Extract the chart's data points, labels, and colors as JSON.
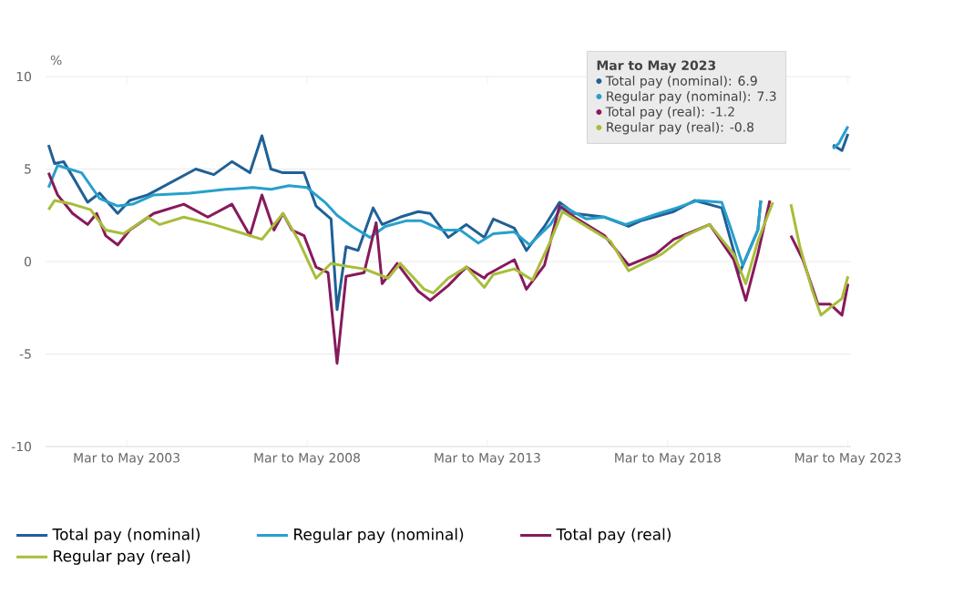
{
  "chart_data": {
    "type": "line",
    "ylabel": "%",
    "xlim": [
      "2001-01",
      "2023-05"
    ],
    "ylim": [
      -10,
      10
    ],
    "yticks": [
      -10,
      -5,
      0,
      5,
      10
    ],
    "xticks": [
      {
        "value": "2003-04",
        "label": "Mar to May 2003"
      },
      {
        "value": "2008-04",
        "label": "Mar to May 2008"
      },
      {
        "value": "2013-04",
        "label": "Mar to May 2013"
      },
      {
        "value": "2018-04",
        "label": "Mar to May 2018"
      },
      {
        "value": "2023-04",
        "label": "Mar to May 2023"
      }
    ],
    "grid": "y",
    "legend": "bottom",
    "marker": "none",
    "line_style": "solid",
    "annotations": [
      "Mar to May 2023",
      "Total pay (nominal): 6.9",
      "Regular pay (nominal): 7.3",
      "Total pay (real): -1.2",
      "Regular pay (real): -0.8"
    ],
    "series": [
      {
        "name": "Total pay (nominal)",
        "color": "#206095",
        "x": [
          "2001-02",
          "2001-04",
          "2001-07",
          "2001-10",
          "2002-03",
          "2002-07",
          "2003-01",
          "2003-05",
          "2003-11",
          "2004-07",
          "2005-03",
          "2005-09",
          "2006-03",
          "2006-09",
          "2007-01",
          "2007-04",
          "2007-08",
          "2008-03",
          "2008-07",
          "2008-12",
          "2009-02",
          "2009-05",
          "2009-09",
          "2010-02",
          "2010-05",
          "2010-11",
          "2011-05",
          "2011-09",
          "2012-03",
          "2012-09",
          "2013-03",
          "2013-06",
          "2014-01",
          "2014-05",
          "2014-11",
          "2015-04",
          "2015-09",
          "2016-07",
          "2017-03",
          "2017-07",
          "2018-06",
          "2019-01",
          "2019-10",
          "2020-04",
          "2020-10",
          "2020-11",
          "2021-06",
          "2022-11",
          "2023-02",
          "2023-04"
        ],
        "values": [
          6.3,
          5.3,
          5.4,
          4.6,
          3.2,
          3.7,
          2.6,
          3.3,
          3.6,
          4.3,
          5.0,
          4.7,
          5.4,
          4.8,
          6.8,
          5.0,
          4.8,
          4.8,
          3.0,
          2.3,
          -2.6,
          0.8,
          0.6,
          2.9,
          2.0,
          2.4,
          2.7,
          2.6,
          1.3,
          2.0,
          1.3,
          2.3,
          1.8,
          0.6,
          1.9,
          3.2,
          2.6,
          2.4,
          1.9,
          2.2,
          2.7,
          3.3,
          2.9,
          -0.6,
          1.7,
          3.3,
          null,
          6.3,
          6.0,
          6.9
        ]
      },
      {
        "name": "Regular pay (nominal)",
        "color": "#27a0cc",
        "x": [
          "2001-02",
          "2001-05",
          "2002-01",
          "2002-07",
          "2003-01",
          "2003-06",
          "2004-01",
          "2005-01",
          "2006-01",
          "2006-10",
          "2007-04",
          "2007-10",
          "2008-04",
          "2008-10",
          "2009-02",
          "2009-07",
          "2010-01",
          "2010-06",
          "2011-01",
          "2011-06",
          "2012-01",
          "2012-07",
          "2013-01",
          "2013-06",
          "2014-01",
          "2014-06",
          "2015-01",
          "2015-05",
          "2016-01",
          "2016-07",
          "2017-02",
          "2018-01",
          "2018-07",
          "2019-02",
          "2019-10",
          "2020-01",
          "2020-05",
          "2020-10",
          "2020-11",
          "2021-06",
          "2022-11",
          "2023-01",
          "2023-04"
        ],
        "values": [
          4.0,
          5.2,
          4.8,
          3.4,
          3.0,
          3.1,
          3.6,
          3.7,
          3.9,
          4.0,
          3.9,
          4.1,
          4.0,
          3.2,
          2.5,
          1.9,
          1.3,
          1.9,
          2.2,
          2.2,
          1.7,
          1.7,
          1.0,
          1.5,
          1.6,
          0.9,
          2.0,
          3.0,
          2.3,
          2.4,
          2.0,
          2.6,
          2.9,
          3.3,
          3.2,
          1.8,
          -0.2,
          1.7,
          3.3,
          null,
          6.1,
          6.4,
          7.3
        ]
      },
      {
        "name": "Total pay (real)",
        "color": "#871a5b",
        "x": [
          "2001-02",
          "2001-05",
          "2001-10",
          "2002-03",
          "2002-06",
          "2002-09",
          "2003-01",
          "2003-05",
          "2004-01",
          "2004-11",
          "2005-07",
          "2006-03",
          "2006-09",
          "2007-01",
          "2007-05",
          "2007-08",
          "2007-11",
          "2008-03",
          "2008-07",
          "2008-11",
          "2009-02",
          "2009-05",
          "2009-11",
          "2010-03",
          "2010-05",
          "2010-10",
          "2011-05",
          "2011-09",
          "2012-03",
          "2012-09",
          "2013-03",
          "2013-04",
          "2014-01",
          "2014-05",
          "2014-11",
          "2015-04",
          "2015-09",
          "2016-07",
          "2017-03",
          "2017-12",
          "2018-06",
          "2019-06",
          "2020-02",
          "2020-06",
          "2020-10",
          "2021-02",
          "2021-05",
          "2021-09",
          "2022-01",
          "2022-06",
          "2022-10",
          "2023-02",
          "2023-04"
        ],
        "values": [
          4.8,
          3.6,
          2.6,
          2.0,
          2.6,
          1.4,
          0.9,
          1.7,
          2.6,
          3.1,
          2.4,
          3.1,
          1.4,
          3.6,
          1.7,
          2.6,
          1.7,
          1.4,
          -0.3,
          -0.6,
          -5.5,
          -0.8,
          -0.6,
          2.1,
          -1.2,
          -0.1,
          -1.6,
          -2.1,
          -1.3,
          -0.3,
          -0.9,
          -0.7,
          0.1,
          -1.5,
          -0.2,
          3.0,
          2.4,
          1.4,
          -0.2,
          0.4,
          1.2,
          2.0,
          0.1,
          -2.1,
          0.4,
          3.3,
          null,
          1.4,
          0.1,
          -2.3,
          -2.3,
          -2.9,
          -1.2
        ]
      },
      {
        "name": "Regular pay (real)",
        "color": "#a8bd3a",
        "x": [
          "2001-02",
          "2001-04",
          "2001-10",
          "2002-04",
          "2002-09",
          "2003-03",
          "2003-11",
          "2004-03",
          "2004-11",
          "2005-09",
          "2006-07",
          "2007-01",
          "2007-08",
          "2008-01",
          "2008-07",
          "2008-12",
          "2009-03",
          "2009-11",
          "2010-07",
          "2010-11",
          "2011-07",
          "2011-10",
          "2012-03",
          "2012-09",
          "2013-03",
          "2013-06",
          "2014-01",
          "2014-07",
          "2015-01",
          "2015-05",
          "2016-01",
          "2016-09",
          "2017-03",
          "2018-02",
          "2018-10",
          "2019-06",
          "2020-02",
          "2020-06",
          "2020-10",
          "2021-03",
          "2021-06",
          "2021-09",
          "2021-12",
          "2022-04",
          "2022-07",
          "2022-10",
          "2023-02",
          "2023-04"
        ],
        "values": [
          2.8,
          3.3,
          3.1,
          2.8,
          1.7,
          1.5,
          2.4,
          2.0,
          2.4,
          2.0,
          1.5,
          1.2,
          2.6,
          1.2,
          -0.9,
          -0.1,
          -0.2,
          -0.4,
          -0.9,
          -0.1,
          -1.5,
          -1.7,
          -0.9,
          -0.3,
          -1.4,
          -0.7,
          -0.4,
          -1.0,
          1.1,
          2.7,
          1.9,
          1.1,
          -0.5,
          0.4,
          1.4,
          2.0,
          0.4,
          -1.2,
          1.1,
          3.2,
          null,
          3.1,
          0.8,
          -1.5,
          -2.9,
          -2.5,
          -2.0,
          -0.8
        ]
      }
    ]
  }
}
